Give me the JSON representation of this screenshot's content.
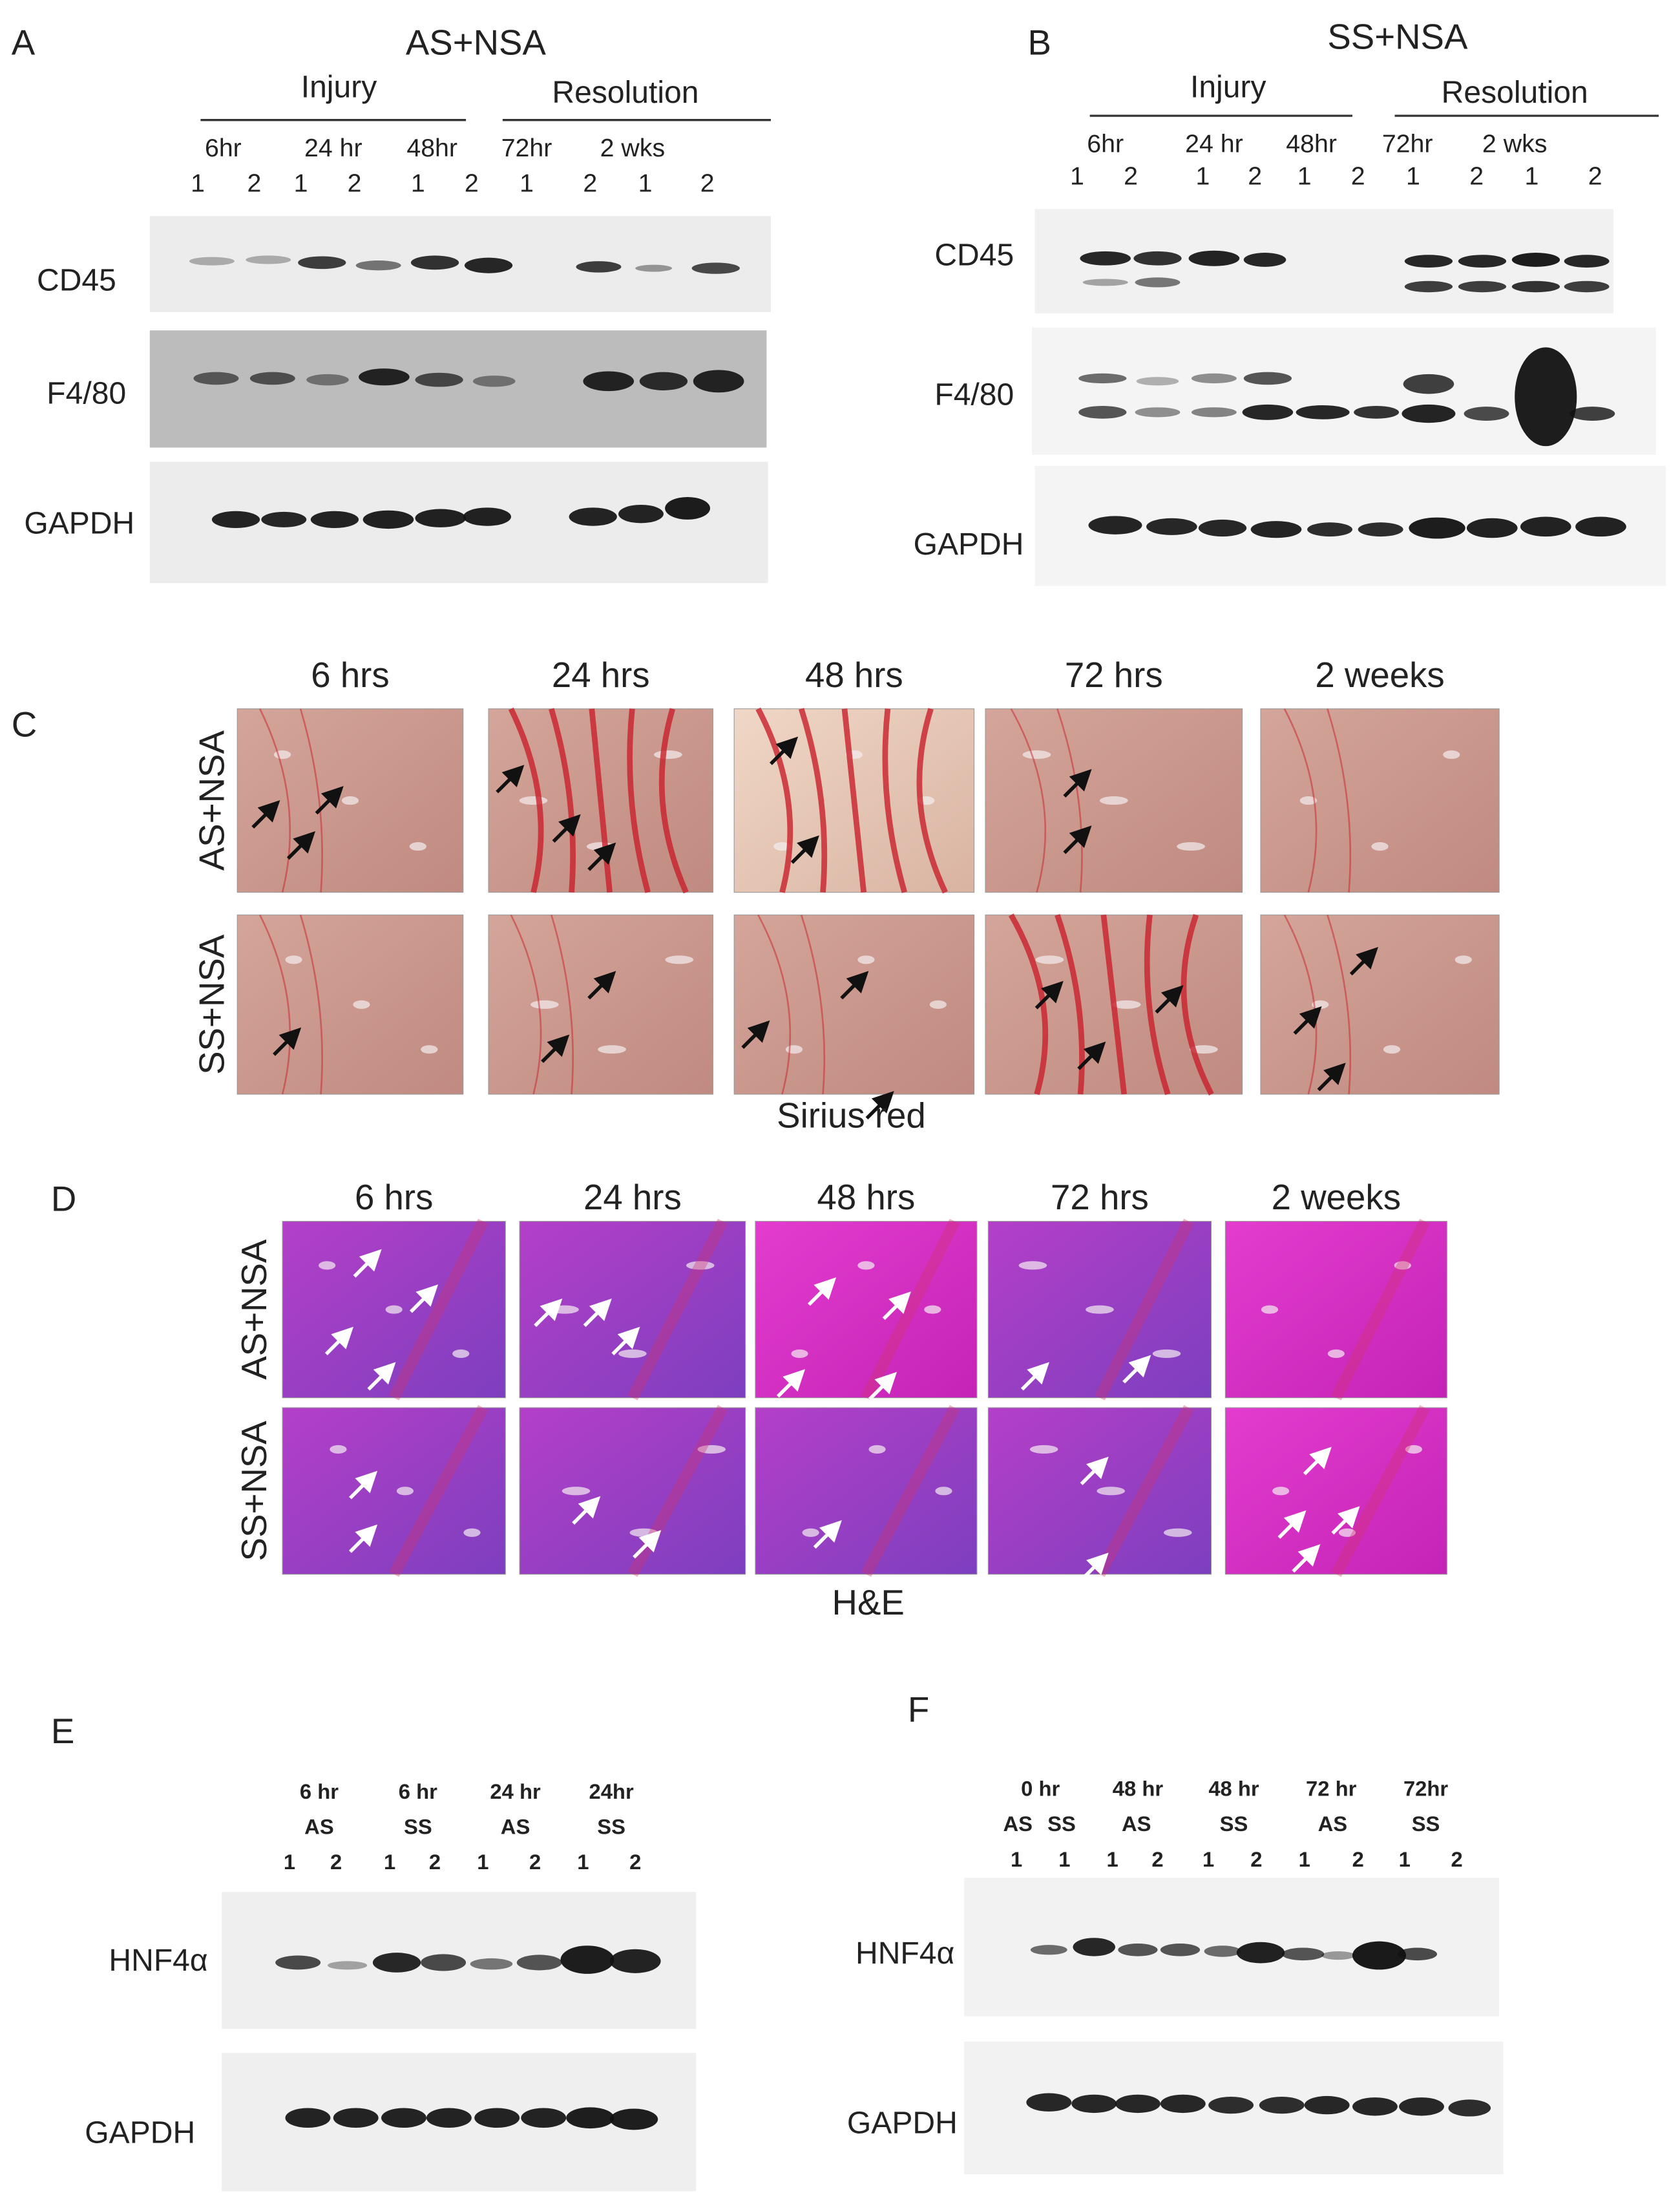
{
  "panel_a": {
    "label": "A",
    "title": "AS+NSA",
    "groups": [
      "Injury",
      "Resolution"
    ],
    "timepoints": [
      "6hr",
      "24 hr",
      "48hr",
      "72hr",
      "2 wks"
    ],
    "lanes": [
      "1",
      "2",
      "1",
      "2",
      "1",
      "2",
      "1",
      "2",
      "1",
      "2"
    ],
    "blots": [
      "CD45",
      "F4/80",
      "GAPDH"
    ]
  },
  "panel_b": {
    "label": "B",
    "title": "SS+NSA",
    "groups": [
      "Injury",
      "Resolution"
    ],
    "timepoints": [
      "6hr",
      "24 hr",
      "48hr",
      "72hr",
      "2 wks"
    ],
    "lanes": [
      "1",
      "2",
      "1",
      "2",
      "1",
      "2",
      "1",
      "2",
      "1",
      "2"
    ],
    "blots": [
      "CD45",
      "F4/80",
      "GAPDH"
    ]
  },
  "panel_c": {
    "label": "C",
    "columns": [
      "6 hrs",
      "24 hrs",
      "48 hrs",
      "72 hrs",
      "2 weeks"
    ],
    "rows": [
      "AS+NSA",
      "SS+NSA"
    ],
    "caption": "Sirius red"
  },
  "panel_d": {
    "label": "D",
    "columns": [
      "6 hrs",
      "24 hrs",
      "48 hrs",
      "72 hrs",
      "2 weeks"
    ],
    "rows": [
      "AS+NSA",
      "SS+NSA"
    ],
    "caption": "H&E"
  },
  "panel_e": {
    "label": "E",
    "timepoints": [
      "6 hr",
      "6 hr",
      "24 hr",
      "24hr"
    ],
    "groups": [
      "AS",
      "SS",
      "AS",
      "SS"
    ],
    "lanes": [
      "1",
      "2",
      "1",
      "2",
      "1",
      "2",
      "1",
      "2"
    ],
    "blots": [
      "HNF4α",
      "GAPDH"
    ]
  },
  "panel_f": {
    "label": "F",
    "timepoints": [
      "0 hr",
      "48 hr",
      "48 hr",
      "72 hr",
      "72hr"
    ],
    "groups": [
      "AS",
      "SS",
      "AS",
      "SS",
      "AS",
      "SS"
    ],
    "lanes": [
      "1",
      "1",
      "1",
      "2",
      "1",
      "2",
      "1",
      "2",
      "1",
      "2"
    ],
    "blots": [
      "HNF4α",
      "GAPDH"
    ]
  }
}
